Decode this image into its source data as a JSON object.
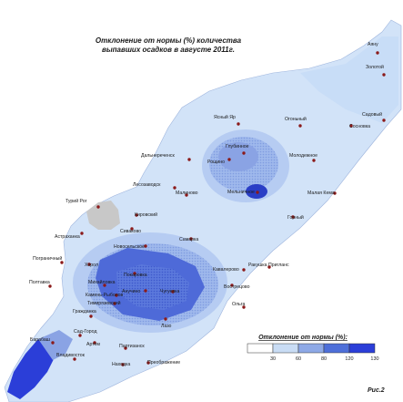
{
  "title": {
    "line1": "Отклонение от нормы (%) количества",
    "line2": "выпавших осадков в августе 2011г."
  },
  "figure_label": "Рис.2",
  "legend": {
    "title": "Отклонение от нормы (%):",
    "ticks": [
      "30",
      "60",
      "80",
      "120",
      "130"
    ],
    "colors": [
      "#ffffff",
      "#c9dcf4",
      "#8ea9e6",
      "#4e6fd9",
      "#2b3ed8"
    ]
  },
  "colors": {
    "land": "#d2e3f8",
    "zone_light": "#b9cff2",
    "zone_mid": "#8aa3e4",
    "zone_high": "#4a64d6",
    "zone_max": "#2333c4",
    "no_data": "#c8c8c8",
    "station": "#8b1a1a"
  },
  "stations": [
    {
      "name": "Аяну"
    },
    {
      "name": "Золотой"
    },
    {
      "name": "Садовый"
    },
    {
      "name": "Ясный Яр"
    },
    {
      "name": "Огоньный"
    },
    {
      "name": "Сосновка"
    },
    {
      "name": "Глубинное"
    },
    {
      "name": "Дальнереченск"
    },
    {
      "name": "Рощино"
    },
    {
      "name": "Молодежное"
    },
    {
      "name": "Лесозаводск"
    },
    {
      "name": "Мельничное"
    },
    {
      "name": "Малиново"
    },
    {
      "name": "Малая Кема"
    },
    {
      "name": "Турий Рог"
    },
    {
      "name": "Кировский"
    },
    {
      "name": "Горный"
    },
    {
      "name": "Астраханка"
    },
    {
      "name": "Сиваково"
    },
    {
      "name": "Самарка"
    },
    {
      "name": "Новосельское"
    },
    {
      "name": "Пограничный"
    },
    {
      "name": "Хорол"
    },
    {
      "name": "Ракушка Пригланс"
    },
    {
      "name": "Покаровка"
    },
    {
      "name": "Михайловка"
    },
    {
      "name": "Анучино"
    },
    {
      "name": "Чугуевка"
    },
    {
      "name": "Кавалерово"
    },
    {
      "name": "Полтавка"
    },
    {
      "name": "Камень-Рыболов"
    },
    {
      "name": "Тимирязевский"
    },
    {
      "name": "Гражданка"
    },
    {
      "name": "Ольга"
    },
    {
      "name": "Вострецово"
    },
    {
      "name": "Лазо"
    },
    {
      "name": "Сад-Город"
    },
    {
      "name": "Барабаш"
    },
    {
      "name": "Артем"
    },
    {
      "name": "Партизанск"
    },
    {
      "name": "Находка"
    },
    {
      "name": "Владивосток"
    },
    {
      "name": "Преображение"
    }
  ]
}
